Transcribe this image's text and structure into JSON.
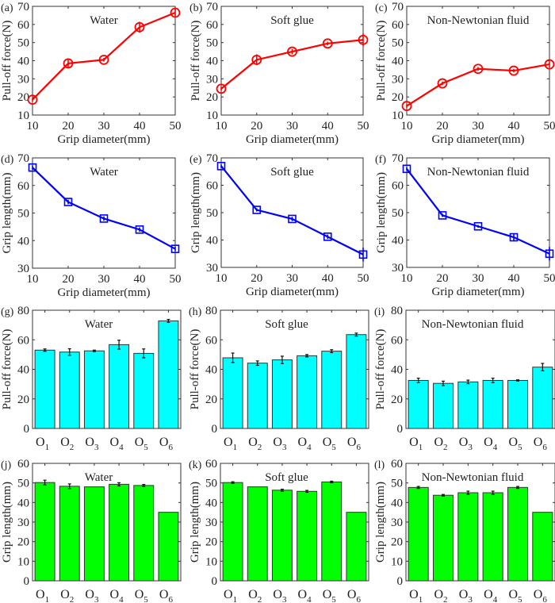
{
  "chart_data": [
    {
      "id": "a",
      "panel_label": "(a)",
      "type": "line",
      "title": "Water",
      "xlabel": "Grip diameter(mm)",
      "ylabel": "Pull-off force(N)",
      "x": [
        10,
        20,
        30,
        40,
        50
      ],
      "xlim": [
        10,
        50
      ],
      "xticks": [
        10,
        20,
        30,
        40,
        50
      ],
      "ylim": [
        10,
        70
      ],
      "yticks": [
        10,
        20,
        30,
        40,
        50,
        60,
        70
      ],
      "series": [
        {
          "name": "Water",
          "values": [
            18.5,
            38.5,
            40.5,
            58.5,
            66.5
          ],
          "errors": [
            1.0,
            2.0,
            1.0,
            3.0,
            2.5
          ],
          "color": "#ff0000",
          "marker": "circle"
        }
      ]
    },
    {
      "id": "b",
      "panel_label": "(b)",
      "type": "line",
      "title": "Soft glue",
      "xlabel": "Grip diameter(mm)",
      "ylabel": "Pull-off force(N)",
      "x": [
        10,
        20,
        30,
        40,
        50
      ],
      "xlim": [
        10,
        50
      ],
      "xticks": [
        10,
        20,
        30,
        40,
        50
      ],
      "ylim": [
        10,
        70
      ],
      "yticks": [
        10,
        20,
        30,
        40,
        50,
        60,
        70
      ],
      "series": [
        {
          "name": "Soft glue",
          "values": [
            24.5,
            40.5,
            45.0,
            49.5,
            51.5
          ],
          "errors": [
            1.0,
            3.0,
            1.5,
            1.0,
            3.5
          ],
          "color": "#ff0000",
          "marker": "circle"
        }
      ]
    },
    {
      "id": "c",
      "panel_label": "(c)",
      "type": "line",
      "title": "Non-Newtonian fluid",
      "xlabel": "Grip diameter(mm)",
      "ylabel": "Pull-off force(N)",
      "x": [
        10,
        20,
        30,
        40,
        50
      ],
      "xlim": [
        10,
        50
      ],
      "xticks": [
        10,
        20,
        30,
        40,
        50
      ],
      "ylim": [
        10,
        70
      ],
      "yticks": [
        10,
        20,
        30,
        40,
        50,
        60,
        70
      ],
      "series": [
        {
          "name": "Non-Newtonian fluid",
          "values": [
            15.0,
            27.5,
            35.5,
            34.5,
            38.0
          ],
          "errors": [
            1.0,
            1.0,
            1.0,
            1.0,
            1.5
          ],
          "color": "#ff0000",
          "marker": "circle"
        }
      ]
    },
    {
      "id": "d",
      "panel_label": "(d)",
      "type": "line",
      "title": "Water",
      "xlabel": "Grip diameter(mm)",
      "ylabel": "Grip length(mm)",
      "x": [
        10,
        20,
        30,
        40,
        50
      ],
      "xlim": [
        10,
        50
      ],
      "xticks": [
        10,
        20,
        30,
        40,
        50
      ],
      "ylim": [
        30,
        70
      ],
      "yticks": [
        30,
        40,
        50,
        60,
        70
      ],
      "series": [
        {
          "name": "Water",
          "values": [
            66.5,
            54.0,
            48.0,
            44.0,
            37.0
          ],
          "errors": [
            0.8,
            0.8,
            0.8,
            0.8,
            0.8
          ],
          "color": "#0000ff",
          "marker": "square"
        }
      ]
    },
    {
      "id": "e",
      "panel_label": "(e)",
      "type": "line",
      "title": "Soft glue",
      "xlabel": "Grip diameter(mm)",
      "ylabel": "Grip length(mm)",
      "x": [
        10,
        20,
        30,
        40,
        50
      ],
      "xlim": [
        10,
        50
      ],
      "xticks": [
        10,
        20,
        30,
        40,
        50
      ],
      "ylim": [
        30,
        70
      ],
      "yticks": [
        30,
        40,
        50,
        60,
        70
      ],
      "series": [
        {
          "name": "Soft glue",
          "values": [
            67.0,
            51.0,
            47.7,
            41.2,
            34.7
          ],
          "errors": [
            0.6,
            0.6,
            0.8,
            0.8,
            2.5
          ],
          "color": "#0000ff",
          "marker": "square"
        }
      ]
    },
    {
      "id": "f",
      "panel_label": "(f)",
      "type": "line",
      "title": "Non-Newtonian fluid",
      "xlabel": "Grip diameter(mm)",
      "ylabel": "Grip length(mm)",
      "x": [
        10,
        20,
        30,
        40,
        50
      ],
      "xlim": [
        10,
        50
      ],
      "xticks": [
        10,
        20,
        30,
        40,
        50
      ],
      "ylim": [
        30,
        70
      ],
      "yticks": [
        30,
        40,
        50,
        60,
        70
      ],
      "series": [
        {
          "name": "Non-Newtonian fluid",
          "values": [
            66.0,
            49.0,
            45.0,
            41.0,
            35.0
          ],
          "errors": [
            0.6,
            0.6,
            0.5,
            1.2,
            2.5
          ],
          "color": "#0000ff",
          "marker": "square"
        }
      ]
    },
    {
      "id": "g",
      "panel_label": "(g)",
      "type": "bar",
      "title": "Water",
      "xlabel": "",
      "ylabel": "Pull-off force(N)",
      "categories": [
        "O",
        "O",
        "O",
        "O",
        "O",
        "O"
      ],
      "category_subscripts": [
        "1",
        "2",
        "3",
        "4",
        "5",
        "6"
      ],
      "ylim": [
        0,
        80
      ],
      "yticks": [
        0,
        20,
        40,
        60,
        80
      ],
      "series": [
        {
          "name": "Water",
          "values": [
            53.0,
            51.7,
            52.5,
            56.7,
            50.8,
            72.8
          ],
          "errors": [
            0.8,
            2.2,
            0.5,
            3.0,
            3.0,
            1.0
          ],
          "color": "#00ffff"
        }
      ]
    },
    {
      "id": "h",
      "panel_label": "(h)",
      "type": "bar",
      "title": "Soft glue",
      "xlabel": "",
      "ylabel": "Pull-off force(N)",
      "categories": [
        "O",
        "O",
        "O",
        "O",
        "O",
        "O"
      ],
      "category_subscripts": [
        "1",
        "2",
        "3",
        "4",
        "5",
        "6"
      ],
      "ylim": [
        0,
        80
      ],
      "yticks": [
        0,
        20,
        40,
        60,
        80
      ],
      "series": [
        {
          "name": "Soft glue",
          "values": [
            47.8,
            44.2,
            46.4,
            49.2,
            52.3,
            63.5
          ],
          "errors": [
            3.2,
            1.5,
            2.5,
            0.8,
            1.0,
            1.0
          ],
          "color": "#00ffff"
        }
      ]
    },
    {
      "id": "i",
      "panel_label": "(i)",
      "type": "bar",
      "title": "Non-Newtonian fluid",
      "xlabel": "",
      "ylabel": "Pull-off force(N)",
      "categories": [
        "O",
        "O",
        "O",
        "O",
        "O",
        "O"
      ],
      "category_subscripts": [
        "1",
        "2",
        "3",
        "4",
        "5",
        "6"
      ],
      "ylim": [
        0,
        80
      ],
      "yticks": [
        0,
        20,
        40,
        60,
        80
      ],
      "series": [
        {
          "name": "Non-Newtonian fluid",
          "values": [
            32.5,
            30.5,
            31.5,
            32.5,
            32.5,
            41.5
          ],
          "errors": [
            1.5,
            1.5,
            1.2,
            1.5,
            0.4,
            2.5
          ],
          "color": "#00ffff"
        }
      ]
    },
    {
      "id": "j",
      "panel_label": "(j)",
      "type": "bar",
      "title": "Water",
      "xlabel": "",
      "ylabel": "Grip length(mm)",
      "categories": [
        "O",
        "O",
        "O",
        "O",
        "O",
        "O"
      ],
      "category_subscripts": [
        "1",
        "2",
        "3",
        "4",
        "5",
        "6"
      ],
      "ylim": [
        0,
        60
      ],
      "yticks": [
        0,
        10,
        20,
        30,
        40,
        50,
        60
      ],
      "series": [
        {
          "name": "Water",
          "values": [
            50.2,
            48.3,
            48.0,
            49.3,
            48.7,
            35.0
          ],
          "errors": [
            1.2,
            1.2,
            0.0,
            0.8,
            0.5,
            0.0
          ],
          "color": "#00ff00"
        }
      ]
    },
    {
      "id": "k",
      "panel_label": "(k)",
      "type": "bar",
      "title": "Soft glue",
      "xlabel": "",
      "ylabel": "Grip length(mm)",
      "categories": [
        "O",
        "O",
        "O",
        "O",
        "O",
        "O"
      ],
      "category_subscripts": [
        "1",
        "2",
        "3",
        "4",
        "5",
        "6"
      ],
      "ylim": [
        0,
        60
      ],
      "yticks": [
        0,
        10,
        20,
        30,
        40,
        50,
        60
      ],
      "series": [
        {
          "name": "Soft glue",
          "values": [
            50.2,
            48.0,
            46.3,
            45.7,
            50.5,
            35.0
          ],
          "errors": [
            0.4,
            0.0,
            0.5,
            0.5,
            0.4,
            0.0
          ],
          "color": "#00ff00"
        }
      ]
    },
    {
      "id": "l",
      "panel_label": "(l)",
      "type": "bar",
      "title": "Non-Newtonian fluid",
      "xlabel": "",
      "ylabel": "Grip length(mm)",
      "categories": [
        "O",
        "O",
        "O",
        "O",
        "O",
        "O"
      ],
      "category_subscripts": [
        "1",
        "2",
        "3",
        "4",
        "5",
        "6"
      ],
      "ylim": [
        0,
        60
      ],
      "yticks": [
        0,
        10,
        20,
        30,
        40,
        50,
        60
      ],
      "series": [
        {
          "name": "Non-Newtonian fluid",
          "values": [
            47.7,
            43.7,
            45.0,
            45.0,
            47.7,
            35.0
          ],
          "errors": [
            0.5,
            0.4,
            0.8,
            0.8,
            0.5,
            0.0
          ],
          "color": "#00ff00"
        }
      ]
    }
  ]
}
